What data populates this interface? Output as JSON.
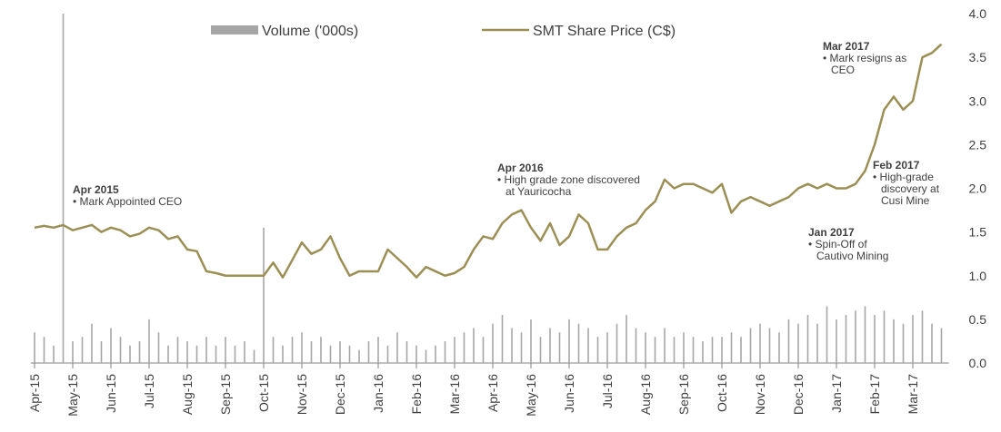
{
  "chart_data": {
    "type": "line",
    "categories": [
      "Apr-15",
      null,
      null,
      null,
      "May-15",
      null,
      null,
      null,
      "Jun-15",
      null,
      null,
      null,
      "Jul-15",
      null,
      null,
      null,
      "Aug-15",
      null,
      null,
      null,
      "Sep-15",
      null,
      null,
      null,
      "Oct-15",
      null,
      null,
      null,
      "Nov-15",
      null,
      null,
      null,
      "Dec-15",
      null,
      null,
      null,
      "Jan-16",
      null,
      null,
      null,
      "Feb-16",
      null,
      null,
      null,
      "Mar-16",
      null,
      null,
      null,
      "Apr-16",
      null,
      null,
      null,
      "May-16",
      null,
      null,
      null,
      "Jun-16",
      null,
      null,
      null,
      "Jul-16",
      null,
      null,
      null,
      "Aug-16",
      null,
      null,
      null,
      "Sep-16",
      null,
      null,
      null,
      "Oct-16",
      null,
      null,
      null,
      "Nov-16",
      null,
      null,
      null,
      "Dec-16",
      null,
      null,
      null,
      "Jan-17",
      null,
      null,
      null,
      "Feb-17",
      null,
      null,
      null,
      "Mar-17",
      null,
      null,
      null
    ],
    "series": [
      {
        "name": "Volume ('000s)",
        "type": "bar",
        "color": "#a6a6a6",
        "values": [
          0.35,
          0.3,
          0.2,
          4.0,
          0.25,
          0.3,
          0.45,
          0.25,
          0.4,
          0.3,
          0.2,
          0.25,
          0.5,
          0.35,
          0.2,
          0.3,
          0.25,
          0.2,
          0.3,
          0.2,
          0.3,
          0.2,
          0.25,
          0.15,
          1.55,
          0.3,
          0.2,
          0.3,
          0.35,
          0.25,
          0.3,
          0.2,
          0.25,
          0.2,
          0.15,
          0.25,
          0.3,
          0.2,
          0.35,
          0.25,
          0.2,
          0.15,
          0.2,
          0.25,
          0.3,
          0.35,
          0.4,
          0.3,
          0.45,
          0.55,
          0.4,
          0.35,
          0.5,
          0.3,
          0.4,
          0.35,
          0.5,
          0.45,
          0.4,
          0.3,
          0.35,
          0.45,
          0.55,
          0.4,
          0.35,
          0.3,
          0.4,
          0.3,
          0.35,
          0.3,
          0.25,
          0.3,
          0.3,
          0.35,
          0.3,
          0.4,
          0.45,
          0.4,
          0.35,
          0.5,
          0.45,
          0.55,
          0.45,
          0.65,
          0.5,
          0.55,
          0.6,
          0.65,
          0.55,
          0.6,
          0.5,
          0.45,
          0.55,
          0.6,
          0.45,
          0.4
        ]
      },
      {
        "name": "SMT Share Price (C$)",
        "type": "line",
        "color": "#9c8f55",
        "values": [
          1.55,
          1.57,
          1.55,
          1.58,
          1.52,
          1.55,
          1.58,
          1.5,
          1.55,
          1.52,
          1.45,
          1.48,
          1.55,
          1.52,
          1.42,
          1.45,
          1.3,
          1.28,
          1.05,
          1.03,
          1.0,
          1.0,
          1.0,
          1.0,
          1.0,
          1.15,
          0.98,
          1.18,
          1.38,
          1.25,
          1.3,
          1.45,
          1.2,
          1.0,
          1.05,
          1.05,
          1.05,
          1.3,
          1.2,
          1.1,
          0.98,
          1.1,
          1.05,
          1.0,
          1.03,
          1.1,
          1.3,
          1.45,
          1.42,
          1.6,
          1.7,
          1.75,
          1.55,
          1.4,
          1.6,
          1.35,
          1.45,
          1.7,
          1.6,
          1.3,
          1.3,
          1.45,
          1.55,
          1.6,
          1.75,
          1.85,
          2.1,
          2.0,
          2.05,
          2.05,
          2.0,
          1.95,
          2.05,
          1.72,
          1.85,
          1.9,
          1.85,
          1.8,
          1.85,
          1.9,
          2.0,
          2.05,
          2.0,
          2.05,
          2.0,
          2.0,
          2.05,
          2.2,
          2.5,
          2.9,
          3.05,
          2.9,
          3.0,
          3.5,
          3.55,
          3.65
        ]
      }
    ],
    "ylim": [
      0,
      4
    ],
    "yticks": [
      {
        "value": 0,
        "label": "0.0"
      },
      {
        "value": 0.5,
        "label": "0.5"
      },
      {
        "value": 1,
        "label": "1.0"
      },
      {
        "value": 1.5,
        "label": "1.5"
      },
      {
        "value": 2,
        "label": "2.0"
      },
      {
        "value": 2.5,
        "label": "2.5"
      },
      {
        "value": 3,
        "label": "3.0"
      },
      {
        "value": 3.5,
        "label": "3.5"
      },
      {
        "value": 4,
        "label": "4.0"
      }
    ],
    "legend": "top",
    "annotations": [
      {
        "date": "Apr 2015",
        "lines": [
          "• Mark Appointed CEO"
        ]
      },
      {
        "date": "Apr 2016",
        "lines": [
          "• High grade zone discovered",
          "at Yauricocha"
        ]
      },
      {
        "date": "Jan 2017",
        "lines": [
          "• Spin-Off of",
          "Cautivo Mining"
        ]
      },
      {
        "date": "Feb 2017",
        "lines": [
          "• High-grade",
          "discovery at",
          "Cusi Mine"
        ]
      },
      {
        "date": "Mar 2017",
        "lines": [
          "• Mark resigns as",
          "CEO"
        ]
      }
    ]
  }
}
